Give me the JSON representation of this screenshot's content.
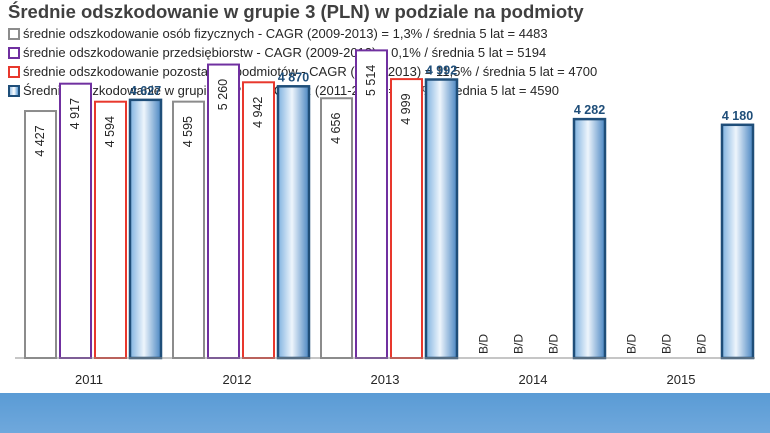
{
  "chart_data": {
    "type": "bar",
    "title": "Średnie odszkodowanie w grupie 3 (PLN) w podziale na podmioty",
    "categories": [
      "2011",
      "2012",
      "2013",
      "2014",
      "2015"
    ],
    "ylim": [
      0,
      5700
    ],
    "grid": false,
    "legend_position": "top",
    "series": [
      {
        "name": "średnie odszkodowanie osób fizycznych - CAGR (2009-2013) = 1,3% / średnia 5 lat = 4483",
        "values": [
          4427,
          4595,
          4656,
          null,
          null
        ],
        "labels": [
          "4 427",
          "4 595",
          "4 656",
          "B/D",
          "B/D"
        ],
        "color": "#8c8c8c"
      },
      {
        "name": "średnie odszkodowanie przedsiębiorstw - CAGR (2009-2013) = 0,1% / średnia 5 lat = 5194",
        "values": [
          4917,
          5260,
          5514,
          null,
          null
        ],
        "labels": [
          "4 917",
          "5 260",
          "5 514",
          "B/D",
          "B/D"
        ],
        "color": "#7030a0"
      },
      {
        "name": "średnie odszkodowanie pozostałych podmiotów - CAGR (2009-2013) = 11,5% / średnia 5 lat = 4700",
        "values": [
          4594,
          4942,
          4999,
          null,
          null
        ],
        "labels": [
          "4 594",
          "4 942",
          "4 999",
          "B/D",
          "B/D"
        ],
        "color": "#e8382d"
      },
      {
        "name": "Średnie odszkodowanie w grupie 3 (PLN) - CAGR (2011-2015) = -2,5% / średnia 5 lat = 4590",
        "values": [
          4627,
          4870,
          4992,
          4282,
          4180
        ],
        "labels": [
          "4 627",
          "4 870",
          "4 992",
          "4 282",
          "4 180"
        ],
        "color": "#1f4e79"
      }
    ]
  }
}
